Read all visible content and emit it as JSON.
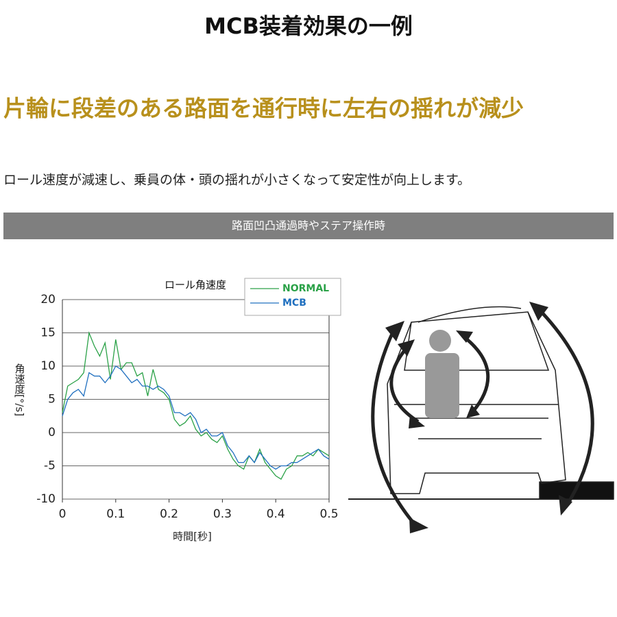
{
  "title": "MCB装着効果の一例",
  "headline": "片輪に段差のある路面を通行時に左右の揺れが減少",
  "description": "ロール速度が減速し、乗員の体・頭の揺れが小さくなって安定性が向上します。",
  "banner": "路面凹凸通過時やステア操作時",
  "chart_data": {
    "type": "line",
    "title": "ロール角速度",
    "xlabel": "時間[秒]",
    "ylabel": "角速度[°/s]",
    "x": [
      0,
      0.01,
      0.02,
      0.03,
      0.04,
      0.05,
      0.06,
      0.07,
      0.08,
      0.09,
      0.1,
      0.11,
      0.12,
      0.13,
      0.14,
      0.15,
      0.16,
      0.17,
      0.18,
      0.19,
      0.2,
      0.21,
      0.22,
      0.23,
      0.24,
      0.25,
      0.26,
      0.27,
      0.28,
      0.29,
      0.3,
      0.31,
      0.32,
      0.33,
      0.34,
      0.35,
      0.36,
      0.37,
      0.38,
      0.39,
      0.4,
      0.41,
      0.42,
      0.43,
      0.44,
      0.45,
      0.46,
      0.47,
      0.48,
      0.49,
      0.5
    ],
    "series": [
      {
        "name": "NORMAL",
        "color": "#2aa147",
        "values": [
          3,
          7,
          7.5,
          8,
          9,
          15,
          13,
          11.5,
          13.5,
          8,
          14,
          9.5,
          10.5,
          10.5,
          8.5,
          9,
          5.5,
          9.5,
          6.5,
          6,
          5,
          2,
          1,
          1.5,
          2.5,
          0.5,
          -0.5,
          0,
          -1,
          -1.5,
          -0.5,
          -2.5,
          -4,
          -5,
          -5.5,
          -3.5,
          -4.5,
          -2.5,
          -4.5,
          -5.5,
          -6.5,
          -7,
          -5.5,
          -5,
          -3.5,
          -3.5,
          -3,
          -3.5,
          -2.5,
          -3,
          -3.5
        ]
      },
      {
        "name": "MCB",
        "color": "#1f6fbf",
        "values": [
          2.5,
          5,
          6,
          6.5,
          5.5,
          9,
          8.5,
          8.5,
          7.5,
          8.5,
          10,
          9.5,
          8.5,
          7.5,
          8,
          7,
          7,
          6.5,
          7,
          6.5,
          5.5,
          3,
          3,
          2.5,
          3,
          2,
          0,
          0.5,
          -0.5,
          -0.5,
          0,
          -2,
          -3,
          -4.5,
          -4.5,
          -3.5,
          -4.5,
          -3,
          -4,
          -5,
          -5.5,
          -5,
          -5,
          -4.5,
          -4.5,
          -4,
          -3.5,
          -3,
          -2.5,
          -3.5,
          -4
        ]
      }
    ],
    "xlim": [
      0,
      0.5
    ],
    "xticks": [
      0,
      0.1,
      0.2,
      0.3,
      0.4,
      0.5
    ],
    "ylim": [
      -10,
      20
    ],
    "yticks": [
      -10,
      -5,
      0,
      5,
      10,
      15,
      20
    ],
    "grid": true,
    "legend": "top-right"
  }
}
